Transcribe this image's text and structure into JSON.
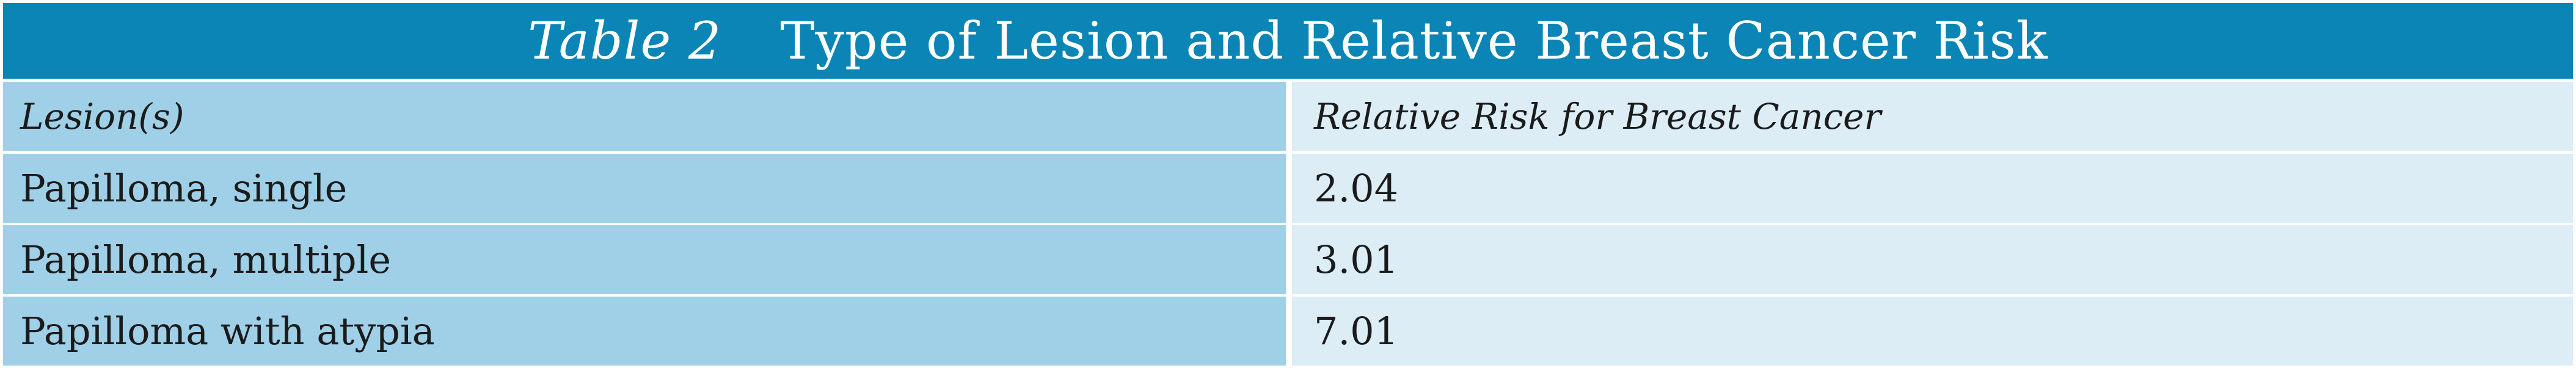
{
  "table": {
    "label": "Table 2",
    "title": "Type of Lesion and Relative Breast Cancer Risk",
    "headers": [
      "Lesion(s)",
      "Relative Risk for Breast Cancer"
    ],
    "rows": [
      {
        "lesion": "Papilloma, single",
        "risk": "2.04"
      },
      {
        "lesion": "Papilloma, multiple",
        "risk": "3.01"
      },
      {
        "lesion": "Papilloma with atypia",
        "risk": "7.01"
      }
    ]
  },
  "colors": {
    "title_background": "#0a85b5",
    "left_column": "#9fd0e8",
    "right_column": "#dcedf6",
    "text": "#1b1b1b"
  }
}
